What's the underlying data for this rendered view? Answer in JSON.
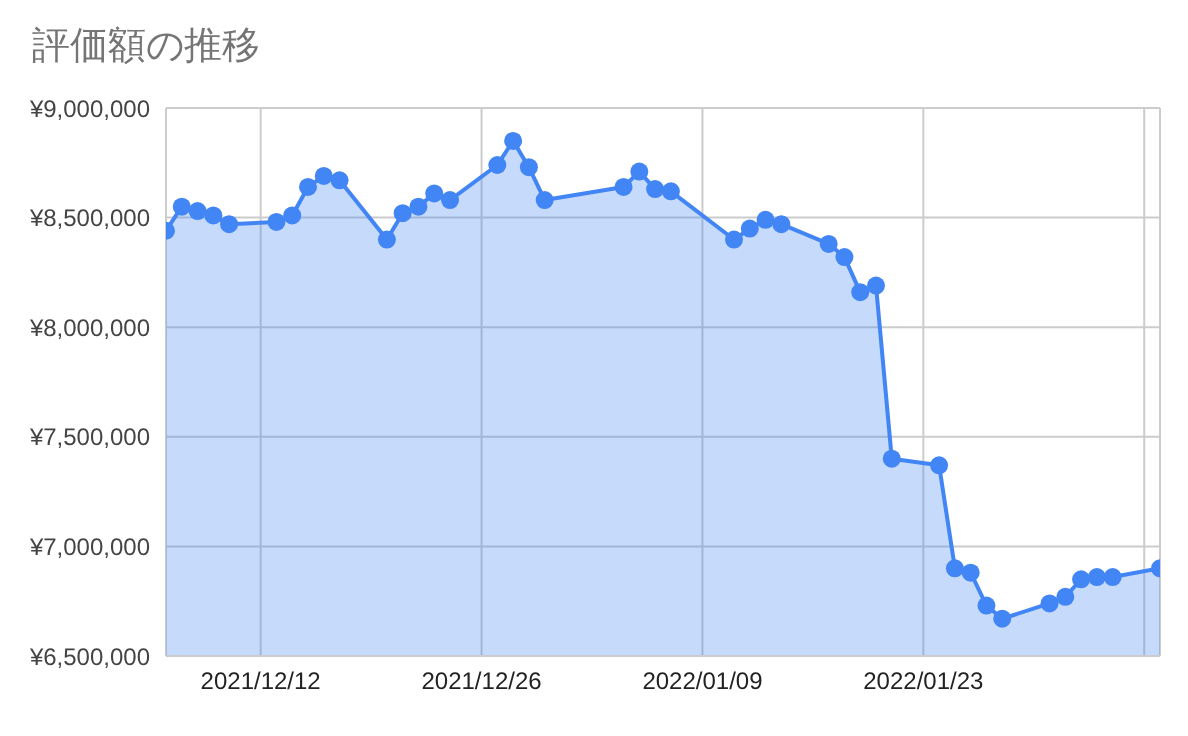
{
  "chart_data": {
    "type": "area",
    "title": "評価額の推移",
    "x": [
      "2021-12-06",
      "2021-12-07",
      "2021-12-08",
      "2021-12-09",
      "2021-12-10",
      "2021-12-13",
      "2021-12-14",
      "2021-12-15",
      "2021-12-16",
      "2021-12-17",
      "2021-12-20",
      "2021-12-21",
      "2021-12-22",
      "2021-12-23",
      "2021-12-24",
      "2021-12-27",
      "2021-12-28",
      "2021-12-29",
      "2021-12-30",
      "2022-01-04",
      "2022-01-05",
      "2022-01-06",
      "2022-01-07",
      "2022-01-11",
      "2022-01-12",
      "2022-01-13",
      "2022-01-14",
      "2022-01-17",
      "2022-01-18",
      "2022-01-19",
      "2022-01-20",
      "2022-01-21",
      "2022-01-24",
      "2022-01-25",
      "2022-01-26",
      "2022-01-27",
      "2022-01-28",
      "2022-01-31",
      "2022-02-01",
      "2022-02-02",
      "2022-02-03",
      "2022-02-04",
      "2022-02-07"
    ],
    "series": [
      {
        "color": "#4285f4",
        "values": [
          8440000,
          8550000,
          8530000,
          8510000,
          8470000,
          8480000,
          8510000,
          8640000,
          8690000,
          8670000,
          8400000,
          8520000,
          8550000,
          8610000,
          8580000,
          8740000,
          8850000,
          8730000,
          8580000,
          8640000,
          8710000,
          8630000,
          8620000,
          8400000,
          8450000,
          8490000,
          8470000,
          8380000,
          8320000,
          8160000,
          8190000,
          7400000,
          7370000,
          6900000,
          6880000,
          6730000,
          6670000,
          6740000,
          6770000,
          6850000,
          6860000,
          6860000,
          6900000
        ]
      }
    ],
    "xlim": [
      "2021-12-06",
      "2022-02-07"
    ],
    "xticks": [
      {
        "value": "2021-12-12",
        "label": "2021/12/12"
      },
      {
        "value": "2021-12-26",
        "label": "2021/12/26"
      },
      {
        "value": "2022-01-09",
        "label": "2022/01/09"
      },
      {
        "value": "2022-01-23",
        "label": "2022/01/23"
      },
      {
        "value": "2022-02-06",
        "label": null
      }
    ],
    "ylim": [
      6500000,
      9000000
    ],
    "yticks": [
      {
        "value": 6500000,
        "label": "¥6,500,000"
      },
      {
        "value": 7000000,
        "label": "¥7,000,000"
      },
      {
        "value": 7500000,
        "label": "¥7,500,000"
      },
      {
        "value": 8000000,
        "label": "¥8,000,000"
      },
      {
        "value": 8500000,
        "label": "¥8,500,000"
      },
      {
        "value": 9000000,
        "label": "¥9,000,000"
      }
    ],
    "grid": true,
    "marker": "circle",
    "line_style": "solid",
    "legend": false
  }
}
